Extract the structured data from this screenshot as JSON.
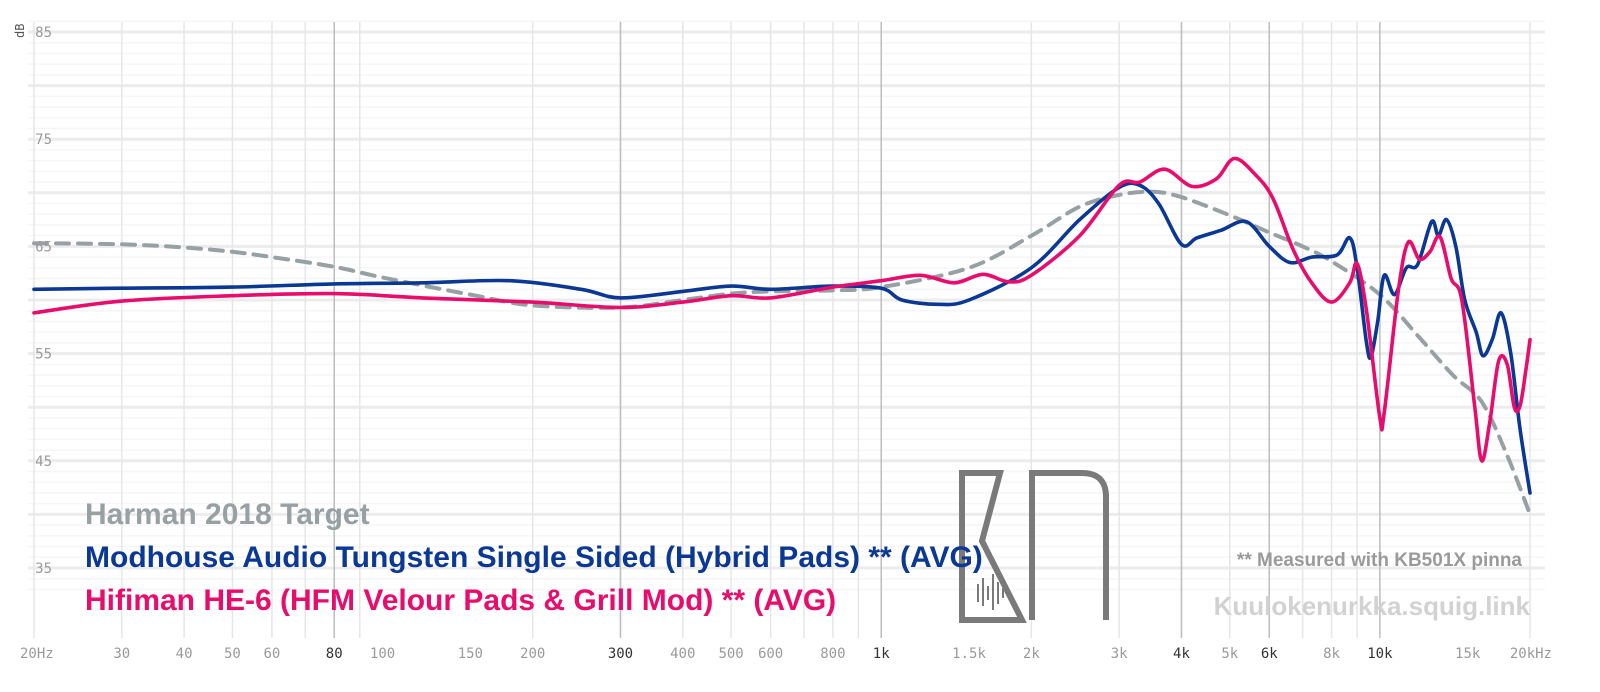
{
  "chart_data": {
    "type": "line",
    "title": "",
    "ylabel": "dB",
    "xlabel": "",
    "x_scale": "log",
    "xlim": [
      20,
      20000
    ],
    "ylim": [
      32,
      86
    ],
    "grid": true,
    "y_ticks": [
      "35",
      "45",
      "55",
      "65",
      "75",
      "85"
    ],
    "y_tick_values": [
      35,
      45,
      55,
      65,
      75,
      85
    ],
    "x_ticks": [
      {
        "value": 20,
        "label": "20Hz",
        "major": false
      },
      {
        "value": 30,
        "label": "30",
        "major": false
      },
      {
        "value": 40,
        "label": "40",
        "major": false
      },
      {
        "value": 50,
        "label": "50",
        "major": false
      },
      {
        "value": 60,
        "label": "60",
        "major": false
      },
      {
        "value": 80,
        "label": "80",
        "major": true
      },
      {
        "value": 100,
        "label": "100",
        "major": false
      },
      {
        "value": 150,
        "label": "150",
        "major": false
      },
      {
        "value": 200,
        "label": "200",
        "major": false
      },
      {
        "value": 300,
        "label": "300",
        "major": true
      },
      {
        "value": 400,
        "label": "400",
        "major": false
      },
      {
        "value": 500,
        "label": "500",
        "major": false
      },
      {
        "value": 600,
        "label": "600",
        "major": false
      },
      {
        "value": 800,
        "label": "800",
        "major": false
      },
      {
        "value": 1000,
        "label": "1k",
        "major": true
      },
      {
        "value": 1500,
        "label": "1.5k",
        "major": false
      },
      {
        "value": 2000,
        "label": "2k",
        "major": false
      },
      {
        "value": 3000,
        "label": "3k",
        "major": false
      },
      {
        "value": 4000,
        "label": "4k",
        "major": true
      },
      {
        "value": 5000,
        "label": "5k",
        "major": false
      },
      {
        "value": 6000,
        "label": "6k",
        "major": true
      },
      {
        "value": 8000,
        "label": "8k",
        "major": false
      },
      {
        "value": 10000,
        "label": "10k",
        "major": true
      },
      {
        "value": 15000,
        "label": "15k",
        "major": false
      },
      {
        "value": 20000,
        "label": "20kHz",
        "major": false
      }
    ],
    "series": [
      {
        "name": "Harman 2018 Target",
        "color": "#97a1a3",
        "dashed": true,
        "points": [
          [
            20,
            65.3
          ],
          [
            30,
            65.2
          ],
          [
            40,
            64.9
          ],
          [
            50,
            64.5
          ],
          [
            60,
            64.0
          ],
          [
            80,
            63.1
          ],
          [
            100,
            62.1
          ],
          [
            150,
            60.5
          ],
          [
            200,
            59.5
          ],
          [
            300,
            59.3
          ],
          [
            400,
            60.0
          ],
          [
            500,
            60.6
          ],
          [
            600,
            60.8
          ],
          [
            800,
            60.9
          ],
          [
            1000,
            61.2
          ],
          [
            1500,
            63.0
          ],
          [
            2000,
            66.0
          ],
          [
            2500,
            68.7
          ],
          [
            3000,
            69.8
          ],
          [
            3500,
            70.1
          ],
          [
            4000,
            69.6
          ],
          [
            5000,
            67.9
          ],
          [
            6000,
            66.3
          ],
          [
            7000,
            65.0
          ],
          [
            8000,
            63.6
          ],
          [
            10000,
            60.5
          ],
          [
            12000,
            56.5
          ],
          [
            14000,
            53.0
          ],
          [
            16000,
            50.5
          ],
          [
            18000,
            45.5
          ],
          [
            20000,
            40.0
          ]
        ]
      },
      {
        "name": "Modhouse Audio Tungsten Single Sided (Hybrid Pads) ** (AVG)",
        "color": "#0b3894",
        "dashed": false,
        "points": [
          [
            20,
            61.0
          ],
          [
            30,
            61.1
          ],
          [
            50,
            61.2
          ],
          [
            80,
            61.5
          ],
          [
            120,
            61.6
          ],
          [
            180,
            61.8
          ],
          [
            250,
            61.0
          ],
          [
            300,
            60.2
          ],
          [
            400,
            60.8
          ],
          [
            500,
            61.3
          ],
          [
            600,
            61.0
          ],
          [
            800,
            61.3
          ],
          [
            1000,
            61.1
          ],
          [
            1100,
            60.0
          ],
          [
            1300,
            59.6
          ],
          [
            1500,
            60.0
          ],
          [
            2000,
            63.0
          ],
          [
            2500,
            67.5
          ],
          [
            3000,
            70.5
          ],
          [
            3300,
            70.7
          ],
          [
            3600,
            69.0
          ],
          [
            4000,
            65.2
          ],
          [
            4300,
            65.8
          ],
          [
            4800,
            66.5
          ],
          [
            5400,
            67.3
          ],
          [
            6000,
            65.0
          ],
          [
            6600,
            63.5
          ],
          [
            7300,
            64.0
          ],
          [
            8200,
            64.2
          ],
          [
            8700,
            65.8
          ],
          [
            9000,
            63.0
          ],
          [
            9400,
            56.0
          ],
          [
            9600,
            54.7
          ],
          [
            9900,
            58.0
          ],
          [
            10200,
            62.3
          ],
          [
            10700,
            60.5
          ],
          [
            11300,
            63.0
          ],
          [
            11900,
            63.3
          ],
          [
            12700,
            67.3
          ],
          [
            13100,
            66.0
          ],
          [
            13600,
            67.5
          ],
          [
            14200,
            65.0
          ],
          [
            14800,
            60.0
          ],
          [
            15600,
            57.0
          ],
          [
            16100,
            54.8
          ],
          [
            16800,
            56.3
          ],
          [
            17500,
            58.8
          ],
          [
            18300,
            55.0
          ],
          [
            19100,
            48.0
          ],
          [
            20000,
            42.0
          ]
        ]
      },
      {
        "name": "Hifiman HE-6 (HFM Velour Pads & Grill Mod) ** (AVG)",
        "color": "#e80c6c",
        "dashed": false,
        "points": [
          [
            20,
            58.8
          ],
          [
            30,
            59.9
          ],
          [
            50,
            60.4
          ],
          [
            80,
            60.6
          ],
          [
            120,
            60.2
          ],
          [
            200,
            59.8
          ],
          [
            300,
            59.3
          ],
          [
            400,
            59.8
          ],
          [
            500,
            60.4
          ],
          [
            600,
            60.2
          ],
          [
            800,
            61.2
          ],
          [
            1000,
            61.8
          ],
          [
            1200,
            62.3
          ],
          [
            1400,
            61.6
          ],
          [
            1600,
            62.4
          ],
          [
            1800,
            61.7
          ],
          [
            2000,
            62.3
          ],
          [
            2500,
            66.0
          ],
          [
            3000,
            70.7
          ],
          [
            3300,
            71.0
          ],
          [
            3700,
            72.2
          ],
          [
            4200,
            70.6
          ],
          [
            4700,
            71.3
          ],
          [
            5100,
            73.2
          ],
          [
            5600,
            71.8
          ],
          [
            6100,
            69.5
          ],
          [
            6700,
            64.7
          ],
          [
            7300,
            61.6
          ],
          [
            8000,
            59.8
          ],
          [
            8700,
            61.6
          ],
          [
            9000,
            63.4
          ],
          [
            9400,
            59.0
          ],
          [
            10000,
            49.0
          ],
          [
            10200,
            49.5
          ],
          [
            10900,
            61.0
          ],
          [
            11400,
            65.4
          ],
          [
            12000,
            63.8
          ],
          [
            12600,
            64.5
          ],
          [
            13200,
            65.9
          ],
          [
            13900,
            62.0
          ],
          [
            14600,
            60.0
          ],
          [
            15500,
            50.0
          ],
          [
            16000,
            45.0
          ],
          [
            16600,
            48.5
          ],
          [
            17300,
            54.3
          ],
          [
            18000,
            54.0
          ],
          [
            18600,
            50.0
          ],
          [
            19100,
            50.1
          ],
          [
            19600,
            53.3
          ],
          [
            20000,
            56.3
          ]
        ]
      }
    ]
  },
  "legend": {
    "items": [
      "Harman 2018 Target",
      "Modhouse Audio Tungsten Single Sided (Hybrid Pads) ** (AVG)",
      "Hifiman HE-6 (HFM Velour Pads & Grill Mod) ** (AVG)"
    ],
    "placement": "bottom-left"
  },
  "note": "** Measured with KB501X pinna",
  "watermark": "Kuulokenurkka.squig.link",
  "logo": {
    "text": "KN",
    "color": "#777777"
  }
}
